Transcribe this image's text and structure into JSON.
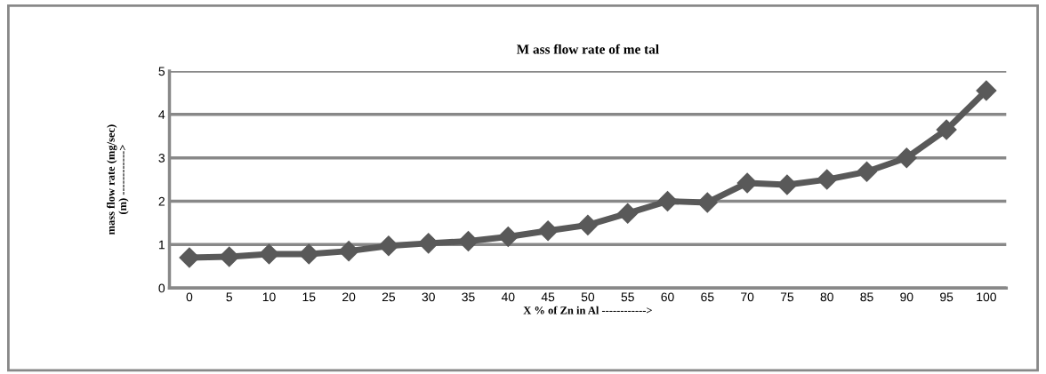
{
  "chart_data": {
    "type": "line",
    "title": "M ass flow rate of me tal",
    "xlabel": "X % of Zn in Al ------------>",
    "ylabel": "mass flow rate (mg/sec)\n(m) ------------>",
    "categories": [
      "0",
      "5",
      "10",
      "15",
      "20",
      "25",
      "30",
      "35",
      "40",
      "45",
      "50",
      "55",
      "60",
      "65",
      "70",
      "75",
      "80",
      "85",
      "90",
      "95",
      "100"
    ],
    "series": [
      {
        "color": "#595959",
        "values": [
          0.7,
          0.72,
          0.78,
          0.78,
          0.85,
          0.97,
          1.03,
          1.08,
          1.18,
          1.32,
          1.45,
          1.72,
          2.0,
          1.97,
          2.42,
          2.38,
          2.5,
          2.68,
          3.0,
          3.65,
          4.55
        ]
      }
    ],
    "ylim": [
      0,
      5
    ],
    "yticks": [
      0,
      1,
      2,
      3,
      4,
      5
    ],
    "grid": "y",
    "marker": "diamond",
    "line_style": "solid"
  }
}
